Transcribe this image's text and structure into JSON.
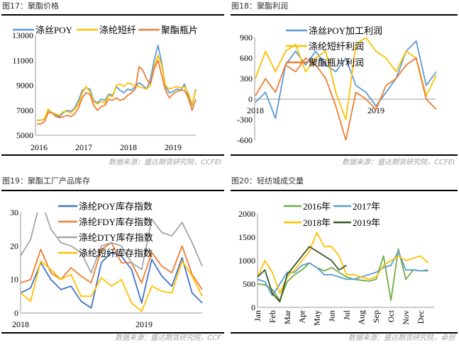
{
  "colors": {
    "blue": "#5b9bd5",
    "yellow": "#ffc000",
    "orange": "#ed7d31",
    "gray": "#a5a5a5",
    "darkblue": "#4472c4",
    "green": "#70ad47",
    "darkgreen": "#385723"
  },
  "chart_data": [
    {
      "id": "fig17",
      "type": "line",
      "title": "图17：聚酯价格",
      "source": "数据来源：盛达期货研究院，CCFEI",
      "x_start": "2016-01",
      "x_step": "1 month",
      "xticks": [
        "2016",
        "2017",
        "2018",
        "2019"
      ],
      "ylim": [
        5000,
        13000
      ],
      "yticks": [
        5000,
        7000,
        9000,
        11000,
        13000
      ],
      "legend": "top",
      "series": [
        {
          "name": "涤丝POY",
          "color": "#5b9bd5",
          "values": [
            6200,
            6200,
            6300,
            7000,
            6800,
            6600,
            6500,
            6800,
            7000,
            6900,
            7200,
            7800,
            8600,
            8800,
            8700,
            7800,
            7600,
            7900,
            7800,
            8300,
            8200,
            8900,
            8600,
            8400,
            8700,
            8600,
            8900,
            9200,
            9000,
            8700,
            9500,
            11000,
            12200,
            10800,
            8900,
            8400,
            8500,
            8700,
            8600,
            9100,
            8200,
            7400,
            8700
          ]
        },
        {
          "name": "涤纶短纤",
          "color": "#ffc000",
          "values": [
            6200,
            6200,
            6300,
            7100,
            6800,
            6700,
            6600,
            6900,
            6900,
            6800,
            7100,
            7500,
            8400,
            8900,
            8500,
            7700,
            7500,
            7700,
            7600,
            8200,
            8100,
            9000,
            9100,
            8900,
            9200,
            9100,
            8900,
            8900,
            8800,
            8700,
            9000,
            10500,
            11400,
            10600,
            9000,
            8700,
            8800,
            8900,
            8800,
            8900,
            8400,
            7500,
            8600
          ]
        },
        {
          "name": "聚酯瓶片",
          "color": "#ed7d31",
          "values": [
            5900,
            5900,
            6100,
            6800,
            6800,
            6500,
            6400,
            6500,
            6600,
            6500,
            6700,
            7200,
            8000,
            8400,
            8300,
            7400,
            7000,
            7300,
            7400,
            7900,
            7800,
            8000,
            7800,
            7900,
            8200,
            8400,
            8700,
            10500,
            10200,
            9500,
            9100,
            10300,
            11000,
            9800,
            8600,
            8000,
            8300,
            8500,
            8600,
            8600,
            8000,
            7000,
            7900
          ]
        }
      ]
    },
    {
      "id": "fig18",
      "type": "line",
      "title": "图18：聚酯利润",
      "source": "数据来源：盛达期货研究院，CCFEI",
      "x_start": "2018-01",
      "x_step": "1 month",
      "xticks": [
        "2018",
        "2019"
      ],
      "ylim": [
        -600,
        900
      ],
      "yticks": [
        -600,
        -300,
        0,
        300,
        600,
        900
      ],
      "legend": "top-center",
      "series": [
        {
          "name": "涤丝POY加工利润",
          "color": "#5b9bd5",
          "values": [
            -50,
            100,
            -280,
            500,
            700,
            500,
            700,
            500,
            400,
            600,
            200,
            100,
            -100,
            100,
            300,
            700,
            850,
            200,
            400
          ]
        },
        {
          "name": "涤纶短纤利润",
          "color": "#ffc000",
          "values": [
            300,
            700,
            400,
            700,
            800,
            400,
            600,
            700,
            100,
            -300,
            800,
            900,
            700,
            600,
            400,
            700,
            600,
            50,
            350
          ]
        },
        {
          "name": "聚酯瓶片利润",
          "color": "#ed7d31",
          "values": [
            50,
            300,
            100,
            500,
            400,
            600,
            500,
            300,
            -100,
            -600,
            100,
            0,
            -150,
            200,
            300,
            500,
            600,
            0,
            -150
          ]
        }
      ]
    },
    {
      "id": "fig19",
      "type": "line",
      "title": "图19：聚酯工厂产品库存",
      "source": "数据来源：盛达期货研究院，CCF",
      "x_start": "2018-01",
      "x_step": "1 month",
      "xticks": [
        "2018",
        "2019"
      ],
      "ylim": [
        0,
        30
      ],
      "yticks": [
        0,
        10,
        20,
        30
      ],
      "legend": "top-center",
      "series": [
        {
          "name": "涤纶POY库存指数",
          "color": "#4472c4",
          "values": [
            6,
            7.5,
            15,
            10,
            7,
            8,
            3.5,
            1.5,
            15,
            18,
            17,
            13,
            3,
            16,
            11,
            8,
            16.5,
            6,
            3
          ]
        },
        {
          "name": "涤纶FDY库存指数",
          "color": "#ed7d31",
          "values": [
            9,
            10,
            19,
            12,
            10,
            13.5,
            11,
            9,
            19,
            21,
            15,
            15,
            9,
            18,
            14,
            12,
            20,
            11.5,
            7
          ]
        },
        {
          "name": "涤纶DTY库存指数",
          "color": "#a5a5a5",
          "values": [
            17,
            22,
            34,
            25,
            21,
            20,
            18,
            12,
            20,
            21,
            20,
            15,
            13,
            28,
            24,
            23,
            27,
            21,
            14
          ]
        },
        {
          "name": "涤纶短纤库存指数",
          "color": "#ffc000",
          "values": [
            6,
            3.5,
            15.5,
            13,
            10,
            11.5,
            5,
            5,
            10.5,
            8,
            10,
            3,
            0.5,
            8,
            6.5,
            6,
            15.5,
            11,
            5
          ]
        }
      ]
    },
    {
      "id": "fig20",
      "type": "line",
      "title": "图20：轻纺城成交量",
      "source": "数据来源：盛达期货研究院，卓创",
      "x_start": "01-01",
      "x_step": "half month",
      "xticks": [
        "Jan",
        "Feb",
        "Mar",
        "Apr",
        "May",
        "Jun",
        "Jul",
        "Aug",
        "Sep",
        "Oct",
        "Nov",
        "Dec"
      ],
      "ylim": [
        0,
        2000
      ],
      "yticks": [
        0,
        500,
        1000,
        1500,
        2000
      ],
      "legend": "top-center",
      "series": [
        {
          "name": "2016年",
          "color": "#70ad47",
          "values": [
            500,
            480,
            380,
            150,
            550,
            700,
            800,
            950,
            850,
            780,
            850,
            750,
            650,
            600,
            580,
            560,
            600,
            1100,
            150,
            1250,
            600,
            800,
            780,
            800
          ]
        },
        {
          "name": "2017年",
          "color": "#5b9bd5",
          "values": [
            600,
            550,
            250,
            500,
            750,
            750,
            900,
            950,
            850,
            700,
            700,
            650,
            600,
            600,
            650,
            700,
            750,
            850,
            900,
            1200,
            800,
            800,
            780,
            780
          ]
        },
        {
          "name": "2018年",
          "color": "#ffc000",
          "values": [
            650,
            1000,
            750,
            300,
            650,
            800,
            1000,
            1200,
            1600,
            1300,
            1300,
            1100,
            700,
            700,
            650,
            600,
            650,
            900,
            1000,
            1100,
            1000,
            1050,
            1100,
            950
          ]
        },
        {
          "name": "2019年",
          "color": "#385723",
          "values": [
            650,
            800,
            300,
            120,
            700,
            900,
            1100,
            1300,
            1200,
            1100,
            1000,
            800,
            900
          ]
        }
      ]
    }
  ]
}
